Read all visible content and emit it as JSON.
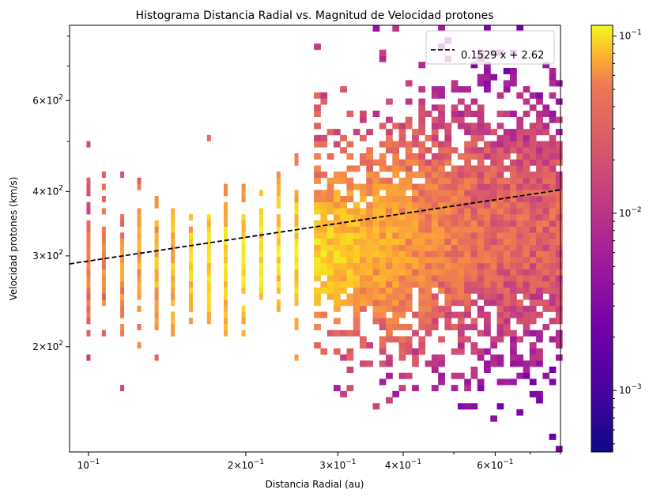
{
  "chart_data": {
    "type": "heatmap",
    "title": "Histograma Distancia Radial vs. Magnitud de Velocidad protones",
    "xlabel": "Distancia Radial (au)",
    "ylabel": "Velocidad protones (km/s)",
    "xscale": "log",
    "yscale": "log",
    "xlim": [
      0.092,
      0.8
    ],
    "ylim": [
      125,
      840
    ],
    "x_ticks": [
      {
        "value": 0.1,
        "base": "10",
        "exp": "−1",
        "mant": ""
      },
      {
        "value": 0.2,
        "base": "10",
        "exp": "−1",
        "mant": "2"
      },
      {
        "value": 0.3,
        "base": "10",
        "exp": "−1",
        "mant": "3"
      },
      {
        "value": 0.4,
        "base": "10",
        "exp": "−1",
        "mant": "4"
      },
      {
        "value": 0.6,
        "base": "10",
        "exp": "−1",
        "mant": "6"
      }
    ],
    "y_ticks": [
      {
        "value": 200,
        "base": "10",
        "exp": "2",
        "mant": "2"
      },
      {
        "value": 300,
        "base": "10",
        "exp": "2",
        "mant": "3"
      },
      {
        "value": 400,
        "base": "10",
        "exp": "2",
        "mant": "4"
      },
      {
        "value": 600,
        "base": "10",
        "exp": "2",
        "mant": "6"
      }
    ],
    "fit_line": {
      "label": "0.1529 x + 2.62",
      "slope": 0.1529,
      "intercept": 2.62,
      "style": "dashed",
      "color": "#000000"
    },
    "legend": {
      "position": "top-right",
      "entries": [
        "0.1529 x + 2.62"
      ]
    },
    "colorbar": {
      "scale": "log",
      "range": [
        0.00045,
        0.115
      ],
      "colormap": "plasma",
      "ticks": [
        {
          "value": 0.001,
          "base": "10",
          "exp": "−3"
        },
        {
          "value": 0.01,
          "base": "10",
          "exp": "−2"
        },
        {
          "value": 0.1,
          "base": "10",
          "exp": "−1"
        }
      ]
    },
    "distribution": {
      "description_free": true,
      "x_columns": [
        0.1,
        0.107,
        0.116,
        0.125,
        0.135,
        0.145,
        0.157,
        0.17,
        0.183,
        0.198,
        0.214,
        0.231,
        0.25,
        0.27,
        0.291,
        0.315,
        0.34,
        0.367,
        0.397,
        0.429,
        0.463,
        0.5,
        0.54,
        0.583,
        0.63,
        0.68,
        0.735,
        0.79
      ],
      "v_center": [
        285,
        282,
        283,
        285,
        287,
        290,
        292,
        295,
        298,
        300,
        302,
        303,
        305,
        306,
        307,
        310,
        315,
        318,
        320,
        322,
        325,
        327,
        330,
        330,
        332,
        333,
        335,
        335
      ],
      "v_spread": [
        0.18,
        0.16,
        0.16,
        0.15,
        0.15,
        0.14,
        0.14,
        0.14,
        0.14,
        0.14,
        0.15,
        0.15,
        0.16,
        0.17,
        0.18,
        0.2,
        0.22,
        0.24,
        0.26,
        0.27,
        0.28,
        0.29,
        0.3,
        0.3,
        0.3,
        0.3,
        0.29,
        0.29
      ],
      "peak_density": [
        0.02,
        0.025,
        0.03,
        0.04,
        0.05,
        0.06,
        0.07,
        0.08,
        0.085,
        0.09,
        0.09,
        0.085,
        0.08,
        0.07,
        0.06,
        0.05,
        0.04,
        0.035,
        0.03,
        0.025,
        0.02,
        0.018,
        0.015,
        0.014,
        0.013,
        0.012,
        0.012,
        0.012
      ]
    }
  }
}
